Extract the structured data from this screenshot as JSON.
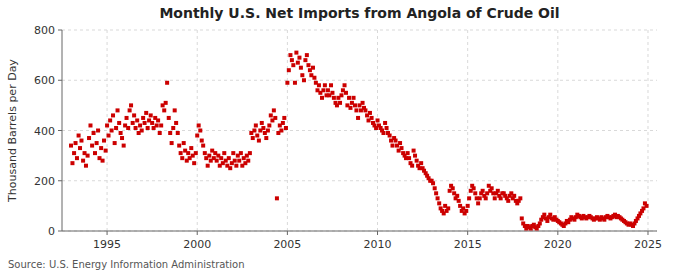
{
  "chart_data": {
    "type": "scatter",
    "title": "Monthly U.S. Net Imports from Angola of Crude Oil",
    "ylabel": "Thousand Barrels per Day",
    "annotations": [
      "Source: U.S. Energy Information Administration"
    ],
    "color": "#cc0000",
    "marker": "square",
    "grid": true,
    "xlim": [
      1992.5,
      2025.5
    ],
    "xticks": [
      1995,
      2000,
      2005,
      2010,
      2015,
      2020,
      2025
    ],
    "ylim": [
      0,
      800
    ],
    "yticks": [
      0,
      200,
      400,
      600,
      800
    ],
    "x": [
      1993.0,
      1993.08,
      1993.17,
      1993.25,
      1993.33,
      1993.42,
      1993.5,
      1993.58,
      1993.67,
      1993.75,
      1993.83,
      1993.92,
      1994.0,
      1994.08,
      1994.17,
      1994.25,
      1994.33,
      1994.42,
      1994.5,
      1994.58,
      1994.67,
      1994.75,
      1994.83,
      1994.92,
      1995.0,
      1995.08,
      1995.17,
      1995.25,
      1995.33,
      1995.42,
      1995.5,
      1995.58,
      1995.67,
      1995.75,
      1995.83,
      1995.92,
      1996.0,
      1996.08,
      1996.17,
      1996.25,
      1996.33,
      1996.42,
      1996.5,
      1996.58,
      1996.67,
      1996.75,
      1996.83,
      1996.92,
      1997.0,
      1997.08,
      1997.17,
      1997.25,
      1997.33,
      1997.42,
      1997.5,
      1997.58,
      1997.67,
      1997.75,
      1997.83,
      1997.92,
      1998.0,
      1998.08,
      1998.17,
      1998.25,
      1998.33,
      1998.42,
      1998.5,
      1998.58,
      1998.67,
      1998.75,
      1998.83,
      1998.92,
      1999.0,
      1999.08,
      1999.17,
      1999.25,
      1999.33,
      1999.42,
      1999.5,
      1999.58,
      1999.67,
      1999.75,
      1999.83,
      1999.92,
      2000.0,
      2000.08,
      2000.17,
      2000.25,
      2000.33,
      2000.42,
      2000.5,
      2000.58,
      2000.67,
      2000.75,
      2000.83,
      2000.92,
      2001.0,
      2001.08,
      2001.17,
      2001.25,
      2001.33,
      2001.42,
      2001.5,
      2001.58,
      2001.67,
      2001.75,
      2001.83,
      2001.92,
      2002.0,
      2002.08,
      2002.17,
      2002.25,
      2002.33,
      2002.42,
      2002.5,
      2002.58,
      2002.67,
      2002.75,
      2002.83,
      2002.92,
      2003.0,
      2003.08,
      2003.17,
      2003.25,
      2003.33,
      2003.42,
      2003.5,
      2003.58,
      2003.67,
      2003.75,
      2003.83,
      2003.92,
      2004.0,
      2004.08,
      2004.17,
      2004.25,
      2004.33,
      2004.42,
      2004.5,
      2004.58,
      2004.67,
      2004.75,
      2004.83,
      2004.92,
      2005.0,
      2005.08,
      2005.17,
      2005.25,
      2005.33,
      2005.42,
      2005.5,
      2005.58,
      2005.67,
      2005.75,
      2005.83,
      2005.92,
      2006.0,
      2006.08,
      2006.17,
      2006.25,
      2006.33,
      2006.42,
      2006.5,
      2006.58,
      2006.67,
      2006.75,
      2006.83,
      2006.92,
      2007.0,
      2007.08,
      2007.17,
      2007.25,
      2007.33,
      2007.42,
      2007.5,
      2007.58,
      2007.67,
      2007.75,
      2007.83,
      2007.92,
      2008.0,
      2008.08,
      2008.17,
      2008.25,
      2008.33,
      2008.42,
      2008.5,
      2008.58,
      2008.67,
      2008.75,
      2008.83,
      2008.92,
      2009.0,
      2009.08,
      2009.17,
      2009.25,
      2009.33,
      2009.42,
      2009.5,
      2009.58,
      2009.67,
      2009.75,
      2009.83,
      2009.92,
      2010.0,
      2010.08,
      2010.17,
      2010.25,
      2010.33,
      2010.42,
      2010.5,
      2010.58,
      2010.67,
      2010.75,
      2010.83,
      2010.92,
      2011.0,
      2011.08,
      2011.17,
      2011.25,
      2011.33,
      2011.42,
      2011.5,
      2011.58,
      2011.67,
      2011.75,
      2011.83,
      2011.92,
      2012.0,
      2012.08,
      2012.17,
      2012.25,
      2012.33,
      2012.42,
      2012.5,
      2012.58,
      2012.67,
      2012.75,
      2012.83,
      2012.92,
      2013.0,
      2013.08,
      2013.17,
      2013.25,
      2013.33,
      2013.42,
      2013.5,
      2013.58,
      2013.67,
      2013.75,
      2013.83,
      2013.92,
      2014.0,
      2014.08,
      2014.17,
      2014.25,
      2014.33,
      2014.42,
      2014.5,
      2014.58,
      2014.67,
      2014.75,
      2014.83,
      2014.92,
      2015.0,
      2015.08,
      2015.17,
      2015.25,
      2015.33,
      2015.42,
      2015.5,
      2015.58,
      2015.67,
      2015.75,
      2015.83,
      2015.92,
      2016.0,
      2016.08,
      2016.17,
      2016.25,
      2016.33,
      2016.42,
      2016.5,
      2016.58,
      2016.67,
      2016.75,
      2016.83,
      2016.92,
      2017.0,
      2017.08,
      2017.17,
      2017.25,
      2017.33,
      2017.42,
      2017.5,
      2017.58,
      2017.67,
      2017.75,
      2017.83,
      2017.92,
      2018.0,
      2018.08,
      2018.17,
      2018.25,
      2018.33,
      2018.42,
      2018.5,
      2018.58,
      2018.67,
      2018.75,
      2018.83,
      2018.92,
      2019.0,
      2019.08,
      2019.17,
      2019.25,
      2019.33,
      2019.42,
      2019.5,
      2019.58,
      2019.67,
      2019.75,
      2019.83,
      2019.92,
      2020.0,
      2020.08,
      2020.17,
      2020.25,
      2020.33,
      2020.42,
      2020.5,
      2020.58,
      2020.67,
      2020.75,
      2020.83,
      2020.92,
      2021.0,
      2021.08,
      2021.17,
      2021.25,
      2021.33,
      2021.42,
      2021.5,
      2021.58,
      2021.67,
      2021.75,
      2021.83,
      2021.92,
      2022.0,
      2022.08,
      2022.17,
      2022.25,
      2022.33,
      2022.42,
      2022.5,
      2022.58,
      2022.67,
      2022.75,
      2022.83,
      2022.92,
      2023.0,
      2023.08,
      2023.17,
      2023.25,
      2023.33,
      2023.42,
      2023.5,
      2023.58,
      2023.67,
      2023.75,
      2023.83,
      2023.92,
      2024.0,
      2024.08,
      2024.17,
      2024.25,
      2024.33,
      2024.42,
      2024.5,
      2024.58,
      2024.67,
      2024.75,
      2024.83,
      2024.92
    ],
    "values": [
      340,
      270,
      310,
      350,
      290,
      380,
      330,
      360,
      280,
      310,
      260,
      300,
      370,
      420,
      340,
      390,
      310,
      350,
      400,
      290,
      330,
      280,
      360,
      320,
      420,
      380,
      440,
      400,
      460,
      350,
      410,
      480,
      430,
      390,
      370,
      340,
      420,
      450,
      410,
      480,
      500,
      430,
      460,
      410,
      440,
      390,
      420,
      400,
      450,
      430,
      470,
      410,
      440,
      460,
      430,
      410,
      450,
      420,
      440,
      390,
      420,
      500,
      480,
      510,
      590,
      450,
      390,
      350,
      410,
      480,
      430,
      390,
      340,
      310,
      290,
      350,
      320,
      280,
      310,
      290,
      330,
      300,
      270,
      310,
      380,
      420,
      400,
      360,
      340,
      310,
      290,
      260,
      300,
      280,
      320,
      290,
      310,
      280,
      300,
      260,
      290,
      270,
      310,
      280,
      260,
      290,
      250,
      270,
      310,
      280,
      260,
      300,
      280,
      310,
      260,
      290,
      270,
      300,
      280,
      310,
      390,
      370,
      400,
      420,
      380,
      360,
      400,
      430,
      410,
      390,
      370,
      400,
      420,
      460,
      440,
      480,
      450,
      130,
      390,
      420,
      400,
      430,
      450,
      410,
      590,
      640,
      700,
      680,
      660,
      590,
      710,
      670,
      690,
      650,
      620,
      600,
      680,
      700,
      660,
      640,
      620,
      650,
      610,
      590,
      560,
      580,
      550,
      530,
      560,
      580,
      540,
      560,
      540,
      580,
      550,
      530,
      510,
      500,
      530,
      510,
      540,
      560,
      580,
      550,
      500,
      530,
      490,
      510,
      530,
      500,
      480,
      450,
      500,
      480,
      510,
      490,
      480,
      460,
      440,
      470,
      450,
      430,
      420,
      410,
      440,
      420,
      410,
      400,
      390,
      430,
      410,
      390,
      380,
      360,
      340,
      370,
      360,
      340,
      320,
      350,
      330,
      310,
      300,
      290,
      310,
      290,
      270,
      260,
      320,
      300,
      280,
      260,
      250,
      270,
      250,
      240,
      230,
      220,
      210,
      200,
      200,
      190,
      170,
      150,
      130,
      110,
      90,
      80,
      70,
      100,
      80,
      90,
      160,
      180,
      170,
      150,
      130,
      140,
      120,
      100,
      80,
      90,
      70,
      80,
      100,
      130,
      160,
      180,
      170,
      150,
      130,
      110,
      130,
      150,
      160,
      140,
      130,
      150,
      180,
      160,
      170,
      150,
      130,
      150,
      160,
      140,
      130,
      150,
      150,
      140,
      130,
      120,
      140,
      150,
      130,
      140,
      120,
      110,
      120,
      130,
      50,
      30,
      20,
      10,
      20,
      15,
      10,
      20,
      25,
      15,
      10,
      20,
      30,
      45,
      55,
      65,
      50,
      40,
      55,
      65,
      50,
      45,
      55,
      45,
      40,
      35,
      30,
      25,
      20,
      30,
      40,
      35,
      45,
      55,
      50,
      45,
      55,
      65,
      60,
      55,
      50,
      60,
      55,
      50,
      55,
      60,
      55,
      50,
      45,
      50,
      55,
      50,
      45,
      55,
      50,
      45,
      55,
      60,
      55,
      50,
      55,
      60,
      65,
      55,
      60,
      55,
      50,
      45,
      40,
      35,
      30,
      25,
      30,
      25,
      20,
      30,
      40,
      50,
      60,
      70,
      80,
      90,
      110,
      100
    ]
  }
}
